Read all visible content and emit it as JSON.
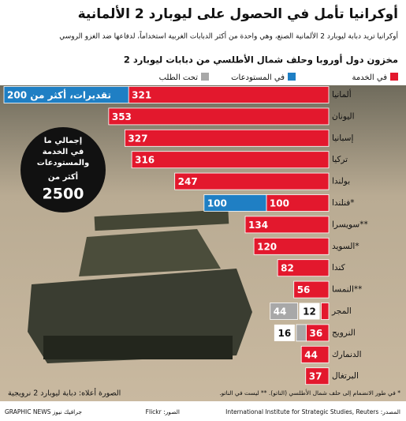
{
  "chart_data": {
    "type": "bar",
    "orientation": "horizontal",
    "stacked": true,
    "title": "أوكرانيا تأمل في الحصول على ليوبارد 2 الألمانية",
    "subtitle": "أوكرانيا تريد دبابة ليوبارد 2 الألمانية الصنع، وهي واحدة من أكثر الدبابات الغربية استخداماً، لدفاعها ضد الغزو الروسي",
    "chart_title": "مخزون دول أوروبا وحلف شمال الأطلسي من دبابات ليوبارد 2",
    "categories": [
      "ألمانيا",
      "اليونان",
      "إسبانيا",
      "تركيا",
      "بولندا",
      "فنلندا*",
      "سويسرا**",
      "السويد*",
      "كندا",
      "النمسا**",
      "المجر",
      "النرويج",
      "الدنمارك",
      "البرتغال"
    ],
    "series": [
      {
        "name": "في الخدمة",
        "color": "#e3182d",
        "values": [
          321,
          353,
          327,
          316,
          247,
          100,
          134,
          120,
          82,
          56,
          12,
          36,
          44,
          37
        ]
      },
      {
        "name": "في المستودعات",
        "color": "#1f7fc4",
        "values": [
          200,
          null,
          null,
          null,
          null,
          100,
          null,
          null,
          null,
          null,
          null,
          null,
          null,
          null
        ],
        "value_labels": [
          "تقديرات، أكثر من 200",
          null,
          null,
          null,
          null,
          null,
          null,
          null,
          null,
          null,
          null,
          null,
          null,
          null
        ]
      },
      {
        "name": "تحت الطلب",
        "color": "#a8a8a8",
        "values": [
          null,
          null,
          null,
          null,
          null,
          null,
          null,
          null,
          null,
          null,
          44,
          16,
          null,
          null
        ]
      }
    ],
    "annotation": {
      "lines": [
        "إجمالي ما",
        "في الخدمة",
        "والمستودعات",
        "أكثر من"
      ],
      "value": 2500
    },
    "footnote": "* في طور الانضمام إلى حلف شمال الأطلسي (الناتو). ** ليست في الناتو.",
    "photo_caption": "الصورة أعلاه: دبابة ليوبارد 2 نرويجية",
    "photo_credit": "الصور: Flickr",
    "source": "المصدر: International Institute for Strategic Studies, Reuters",
    "logo": "GRAPHIC NEWS جرافيك نيوز"
  }
}
